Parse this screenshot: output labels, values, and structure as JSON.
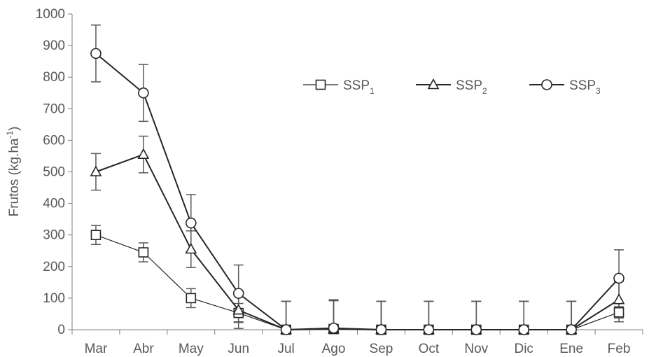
{
  "chart_data": {
    "type": "line",
    "title": "",
    "xlabel": "",
    "ylabel": "Frutos (kg.ha",
    "ylabel_sup": "-1",
    "ylabel_close": ")",
    "ylim": [
      0,
      1000
    ],
    "yticks": [
      "0",
      "100",
      "200",
      "300",
      "400",
      "500",
      "600",
      "700",
      "800",
      "900",
      "1000"
    ],
    "categories": [
      "Mar",
      "Abr",
      "May",
      "Jun",
      "Jul",
      "Ago",
      "Sep",
      "Oct",
      "Nov",
      "Dic",
      "Ene",
      "Feb"
    ],
    "grid": false,
    "legend_position": "top-right",
    "series": [
      {
        "name": "SSP",
        "sub": "1",
        "marker": "square",
        "values": [
          300,
          245,
          100,
          53,
          0,
          2,
          0,
          0,
          0,
          0,
          0,
          55
        ],
        "err": [
          30,
          30,
          30,
          30,
          90,
          90,
          90,
          90,
          90,
          90,
          90,
          30
        ]
      },
      {
        "name": "SSP",
        "sub": "2",
        "marker": "triangle",
        "values": [
          500,
          555,
          255,
          62,
          0,
          2,
          0,
          0,
          0,
          0,
          0,
          95
        ],
        "err": [
          58,
          58,
          58,
          58,
          90,
          90,
          90,
          90,
          90,
          90,
          90,
          58
        ]
      },
      {
        "name": "SSP",
        "sub": "3",
        "marker": "circle",
        "values": [
          875,
          750,
          338,
          115,
          0,
          5,
          0,
          0,
          0,
          0,
          0,
          163
        ],
        "err": [
          90,
          90,
          90,
          90,
          90,
          90,
          90,
          90,
          90,
          90,
          90,
          90
        ]
      }
    ],
    "colors": {
      "line": "#262626",
      "axis": "#7f7f7f",
      "error": "#595959",
      "text": "#595959"
    }
  }
}
